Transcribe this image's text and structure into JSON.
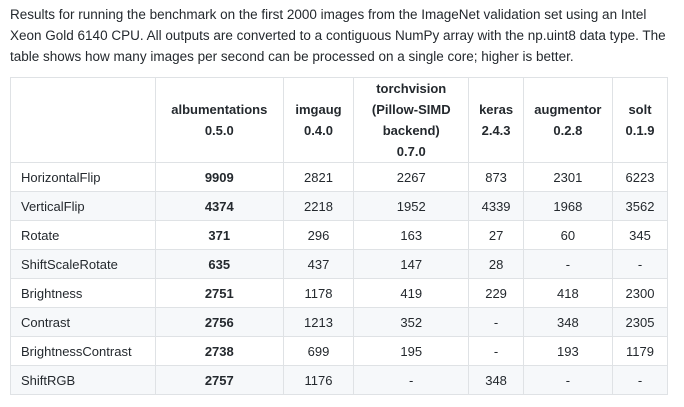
{
  "intro": "Results for running the benchmark on the first 2000 images from the ImageNet validation set using an Intel Xeon Gold 6140 CPU. All outputs are converted to a contiguous NumPy array with the np.uint8 data type. The table shows how many images per second can be processed on a single core; higher is better.",
  "table": {
    "headers": [
      {
        "lines": [
          "albumentations",
          "0.5.0"
        ]
      },
      {
        "lines": [
          "imgaug",
          "0.4.0"
        ]
      },
      {
        "lines": [
          "torchvision",
          "(Pillow-SIMD",
          "backend)",
          "0.7.0"
        ]
      },
      {
        "lines": [
          "keras",
          "2.4.3"
        ]
      },
      {
        "lines": [
          "augmentor",
          "0.2.8"
        ]
      },
      {
        "lines": [
          "solt",
          "0.1.9"
        ]
      }
    ],
    "rows": [
      {
        "name": "HorizontalFlip",
        "values": [
          "9909",
          "2821",
          "2267",
          "873",
          "2301",
          "6223"
        ]
      },
      {
        "name": "VerticalFlip",
        "values": [
          "4374",
          "2218",
          "1952",
          "4339",
          "1968",
          "3562"
        ]
      },
      {
        "name": "Rotate",
        "values": [
          "371",
          "296",
          "163",
          "27",
          "60",
          "345"
        ]
      },
      {
        "name": "ShiftScaleRotate",
        "values": [
          "635",
          "437",
          "147",
          "28",
          "-",
          "-"
        ]
      },
      {
        "name": "Brightness",
        "values": [
          "2751",
          "1178",
          "419",
          "229",
          "418",
          "2300"
        ]
      },
      {
        "name": "Contrast",
        "values": [
          "2756",
          "1213",
          "352",
          "-",
          "348",
          "2305"
        ]
      },
      {
        "name": "BrightnessContrast",
        "values": [
          "2738",
          "699",
          "195",
          "-",
          "193",
          "1179"
        ]
      },
      {
        "name": "ShiftRGB",
        "values": [
          "2757",
          "1176",
          "-",
          "348",
          "-",
          "-"
        ]
      }
    ]
  }
}
